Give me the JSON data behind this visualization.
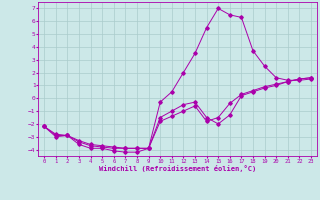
{
  "xlabel": "Windchill (Refroidissement éolien,°C)",
  "bg_color": "#cce8e8",
  "line_color": "#aa00aa",
  "grid_color": "#aacccc",
  "ylim": [
    -4.5,
    7.5
  ],
  "xlim": [
    -0.5,
    23.5
  ],
  "yticks": [
    -4,
    -3,
    -2,
    -1,
    0,
    1,
    2,
    3,
    4,
    5,
    6,
    7
  ],
  "xticks": [
    0,
    1,
    2,
    3,
    4,
    5,
    6,
    7,
    8,
    9,
    10,
    11,
    12,
    13,
    14,
    15,
    16,
    17,
    18,
    19,
    20,
    21,
    22,
    23
  ],
  "series": [
    {
      "x": [
        0,
        1,
        2,
        3,
        4,
        5,
        6,
        7,
        8,
        9,
        10,
        11,
        12,
        13,
        14,
        15,
        16,
        17,
        18,
        19,
        20,
        21,
        22,
        23
      ],
      "y": [
        -2.2,
        -3.0,
        -2.9,
        -3.6,
        -3.9,
        -3.9,
        -4.1,
        -4.2,
        -4.2,
        -3.9,
        -0.3,
        0.5,
        2.0,
        3.5,
        5.5,
        7.0,
        6.5,
        6.3,
        3.7,
        2.5,
        1.6,
        1.4,
        1.4,
        1.5
      ]
    },
    {
      "x": [
        0,
        1,
        2,
        3,
        4,
        5,
        6,
        7,
        8,
        9,
        10,
        11,
        12,
        13,
        14,
        15,
        16,
        17,
        18,
        19,
        20,
        21,
        22,
        23
      ],
      "y": [
        -2.2,
        -2.8,
        -2.9,
        -3.3,
        -3.6,
        -3.7,
        -3.8,
        -3.9,
        -3.9,
        -3.9,
        -1.5,
        -1.0,
        -0.5,
        -0.3,
        -1.5,
        -2.0,
        -1.3,
        0.2,
        0.5,
        0.8,
        1.0,
        1.3,
        1.5,
        1.6
      ]
    },
    {
      "x": [
        0,
        1,
        2,
        3,
        4,
        5,
        6,
        7,
        8,
        9,
        10,
        11,
        12,
        13,
        14,
        15,
        16,
        17,
        18,
        19,
        20,
        21,
        22,
        23
      ],
      "y": [
        -2.2,
        -2.9,
        -2.9,
        -3.4,
        -3.7,
        -3.8,
        -3.9,
        -3.9,
        -3.9,
        -3.9,
        -1.8,
        -1.4,
        -1.0,
        -0.6,
        -1.8,
        -1.5,
        -0.4,
        0.3,
        0.6,
        0.9,
        1.1,
        1.3,
        1.5,
        1.6
      ]
    }
  ]
}
